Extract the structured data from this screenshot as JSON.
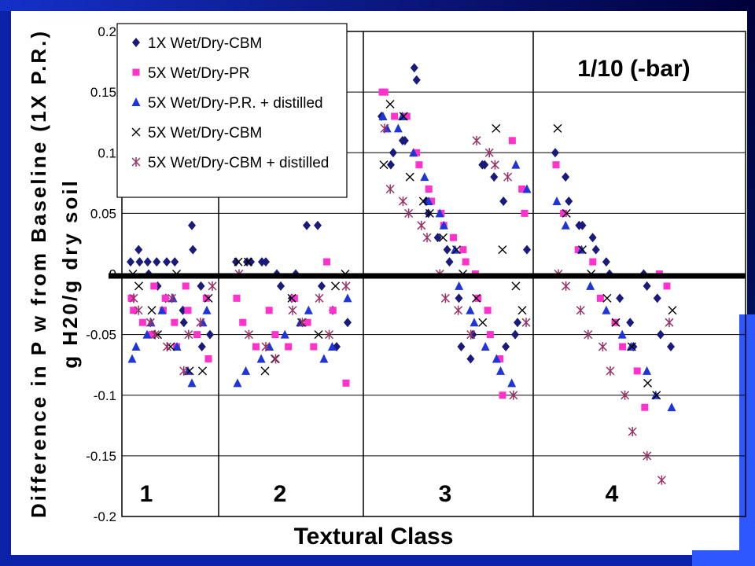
{
  "chart_data": {
    "type": "scatter",
    "title": "",
    "annotation": "1/10 (-bar)",
    "xlabel": "Textural Class",
    "ylabel_line1": "Difference in P w from Baseline (1X P.R.)",
    "ylabel_line2": "g H20/g dry soil",
    "ylim": [
      -0.2,
      0.2
    ],
    "yticks": [
      "0.2",
      "0.15",
      "0.1",
      "0.05",
      "0",
      "-0.05",
      "-0.1",
      "-0.15",
      "-0.2"
    ],
    "grid": true,
    "legend_position": "top-left",
    "classes": [
      "1",
      "2",
      "3",
      "4"
    ],
    "series": [
      {
        "name": "1X Wet/Dry-CBM",
        "marker": "diamond",
        "color": "#1a1a7a",
        "points": [
          [
            1,
            0.01
          ],
          [
            1,
            0.02
          ],
          [
            1,
            0.01
          ],
          [
            1,
            0.01
          ],
          [
            1,
            0.0
          ],
          [
            1,
            0.01
          ],
          [
            1,
            -0.01
          ],
          [
            1,
            -0.02
          ],
          [
            1,
            0.01
          ],
          [
            1,
            0.01
          ],
          [
            1,
            -0.03
          ],
          [
            1,
            -0.04
          ],
          [
            1,
            0.04
          ],
          [
            1,
            0.02
          ],
          [
            1,
            -0.01
          ],
          [
            1,
            -0.06
          ],
          [
            1,
            -0.05
          ],
          [
            2,
            0.01
          ],
          [
            2,
            0.01
          ],
          [
            2,
            0.01
          ],
          [
            2,
            0.01
          ],
          [
            2,
            0.01
          ],
          [
            2,
            0.0
          ],
          [
            2,
            -0.01
          ],
          [
            2,
            -0.02
          ],
          [
            2,
            0.0
          ],
          [
            2,
            0.04
          ],
          [
            2,
            0.04
          ],
          [
            2,
            -0.01
          ],
          [
            2,
            -0.03
          ],
          [
            2,
            -0.06
          ],
          [
            2,
            -0.04
          ],
          [
            3,
            0.13
          ],
          [
            3,
            0.09
          ],
          [
            3,
            0.1
          ],
          [
            3,
            0.11
          ],
          [
            3,
            0.11
          ],
          [
            3,
            0.17
          ],
          [
            3,
            0.16
          ],
          [
            3,
            0.06
          ],
          [
            3,
            0.05
          ],
          [
            3,
            0.03
          ],
          [
            3,
            0.02
          ],
          [
            3,
            0.01
          ],
          [
            3,
            -0.02
          ],
          [
            3,
            -0.06
          ],
          [
            3,
            -0.07
          ],
          [
            3,
            -0.05
          ],
          [
            3,
            0.09
          ],
          [
            3,
            0.09
          ],
          [
            3,
            0.08
          ],
          [
            3,
            0.06
          ],
          [
            3,
            -0.06
          ],
          [
            3,
            -0.05
          ],
          [
            3,
            -0.04
          ],
          [
            3,
            0.02
          ],
          [
            4,
            0.1
          ],
          [
            4,
            0.08
          ],
          [
            4,
            0.06
          ],
          [
            4,
            0.04
          ],
          [
            4,
            0.04
          ],
          [
            4,
            0.03
          ],
          [
            4,
            0.02
          ],
          [
            4,
            0.01
          ],
          [
            4,
            0.0
          ],
          [
            4,
            -0.02
          ],
          [
            4,
            -0.04
          ],
          [
            4,
            -0.06
          ],
          [
            4,
            0.0
          ],
          [
            4,
            -0.01
          ],
          [
            4,
            -0.02
          ],
          [
            4,
            -0.05
          ],
          [
            4,
            -0.06
          ]
        ]
      },
      {
        "name": "5X Wet/Dry-PR",
        "marker": "square",
        "color": "#ff33cc",
        "points": [
          [
            1,
            -0.02
          ],
          [
            1,
            -0.03
          ],
          [
            1,
            -0.04
          ],
          [
            1,
            -0.05
          ],
          [
            1,
            -0.01
          ],
          [
            1,
            -0.03
          ],
          [
            1,
            -0.02
          ],
          [
            1,
            -0.04
          ],
          [
            1,
            -0.06
          ],
          [
            1,
            -0.01
          ],
          [
            1,
            -0.03
          ],
          [
            1,
            -0.05
          ],
          [
            1,
            -0.02
          ],
          [
            1,
            -0.07
          ],
          [
            2,
            -0.02
          ],
          [
            2,
            -0.04
          ],
          [
            2,
            -0.06
          ],
          [
            2,
            -0.03
          ],
          [
            2,
            -0.05
          ],
          [
            2,
            -0.06
          ],
          [
            2,
            -0.02
          ],
          [
            2,
            -0.04
          ],
          [
            2,
            -0.06
          ],
          [
            2,
            0.01
          ],
          [
            2,
            -0.03
          ],
          [
            2,
            -0.09
          ],
          [
            3,
            0.15
          ],
          [
            3,
            0.15
          ],
          [
            3,
            0.13
          ],
          [
            3,
            0.13
          ],
          [
            3,
            0.13
          ],
          [
            3,
            0.1
          ],
          [
            3,
            0.09
          ],
          [
            3,
            0.07
          ],
          [
            3,
            0.06
          ],
          [
            3,
            0.05
          ],
          [
            3,
            0.04
          ],
          [
            3,
            0.03
          ],
          [
            3,
            0.02
          ],
          [
            3,
            0.01
          ],
          [
            3,
            0.0
          ],
          [
            3,
            -0.02
          ],
          [
            3,
            -0.03
          ],
          [
            3,
            -0.05
          ],
          [
            3,
            -0.07
          ],
          [
            3,
            -0.1
          ],
          [
            3,
            0.11
          ],
          [
            3,
            0.07
          ],
          [
            3,
            0.05
          ],
          [
            4,
            0.09
          ],
          [
            4,
            0.05
          ],
          [
            4,
            0.02
          ],
          [
            4,
            0.01
          ],
          [
            4,
            -0.02
          ],
          [
            4,
            -0.04
          ],
          [
            4,
            -0.06
          ],
          [
            4,
            -0.08
          ],
          [
            4,
            -0.11
          ],
          [
            4,
            0.0
          ],
          [
            4,
            -0.01
          ]
        ]
      },
      {
        "name": "5X Wet/Dry-P.R. + distilled",
        "marker": "triangle",
        "color": "#1f35d6",
        "points": [
          [
            1,
            -0.07
          ],
          [
            1,
            -0.06
          ],
          [
            1,
            -0.05
          ],
          [
            1,
            -0.04
          ],
          [
            1,
            -0.03
          ],
          [
            1,
            -0.02
          ],
          [
            1,
            -0.06
          ],
          [
            1,
            -0.08
          ],
          [
            1,
            -0.09
          ],
          [
            1,
            -0.04
          ],
          [
            1,
            -0.03
          ],
          [
            2,
            -0.09
          ],
          [
            2,
            -0.08
          ],
          [
            2,
            -0.07
          ],
          [
            2,
            -0.06
          ],
          [
            2,
            -0.05
          ],
          [
            2,
            -0.04
          ],
          [
            2,
            -0.03
          ],
          [
            2,
            -0.07
          ],
          [
            2,
            -0.06
          ],
          [
            2,
            -0.02
          ],
          [
            3,
            0.13
          ],
          [
            3,
            0.12
          ],
          [
            3,
            0.12
          ],
          [
            3,
            0.13
          ],
          [
            3,
            0.1
          ],
          [
            3,
            0.08
          ],
          [
            3,
            0.06
          ],
          [
            3,
            0.05
          ],
          [
            3,
            0.04
          ],
          [
            3,
            0.02
          ],
          [
            3,
            -0.01
          ],
          [
            3,
            -0.03
          ],
          [
            3,
            -0.04
          ],
          [
            3,
            -0.06
          ],
          [
            3,
            -0.07
          ],
          [
            3,
            -0.08
          ],
          [
            3,
            -0.09
          ],
          [
            3,
            0.09
          ],
          [
            3,
            0.07
          ],
          [
            4,
            0.06
          ],
          [
            4,
            0.04
          ],
          [
            4,
            0.02
          ],
          [
            4,
            -0.01
          ],
          [
            4,
            -0.03
          ],
          [
            4,
            -0.05
          ],
          [
            4,
            -0.06
          ],
          [
            4,
            -0.08
          ],
          [
            4,
            -0.1
          ],
          [
            4,
            -0.11
          ]
        ]
      },
      {
        "name": "5X Wet/Dry-CBM",
        "marker": "x",
        "color": "#000000",
        "points": [
          [
            1,
            0.0
          ],
          [
            1,
            -0.01
          ],
          [
            1,
            -0.03
          ],
          [
            1,
            -0.05
          ],
          [
            1,
            -0.06
          ],
          [
            1,
            0.0
          ],
          [
            1,
            -0.08
          ],
          [
            1,
            -0.08
          ],
          [
            1,
            -0.02
          ],
          [
            2,
            0.01
          ],
          [
            2,
            0.01
          ],
          [
            2,
            -0.08
          ],
          [
            2,
            -0.07
          ],
          [
            2,
            -0.02
          ],
          [
            2,
            -0.04
          ],
          [
            2,
            -0.05
          ],
          [
            2,
            -0.01
          ],
          [
            2,
            0.0
          ],
          [
            3,
            0.09
          ],
          [
            3,
            0.14
          ],
          [
            3,
            0.13
          ],
          [
            3,
            0.08
          ],
          [
            3,
            0.06
          ],
          [
            3,
            0.05
          ],
          [
            3,
            0.03
          ],
          [
            3,
            0.02
          ],
          [
            3,
            0.0
          ],
          [
            3,
            -0.02
          ],
          [
            3,
            -0.04
          ],
          [
            3,
            0.12
          ],
          [
            3,
            0.02
          ],
          [
            3,
            -0.01
          ],
          [
            3,
            -0.03
          ],
          [
            4,
            0.12
          ],
          [
            4,
            0.05
          ],
          [
            4,
            0.02
          ],
          [
            4,
            0.0
          ],
          [
            4,
            -0.02
          ],
          [
            4,
            -0.04
          ],
          [
            4,
            -0.06
          ],
          [
            4,
            -0.09
          ],
          [
            4,
            -0.1
          ],
          [
            4,
            -0.03
          ]
        ]
      },
      {
        "name": "5X Wet/Dry-CBM + distilled",
        "marker": "asterisk",
        "color": "#993366",
        "points": [
          [
            1,
            -0.02
          ],
          [
            1,
            -0.03
          ],
          [
            1,
            -0.04
          ],
          [
            1,
            -0.05
          ],
          [
            1,
            -0.06
          ],
          [
            1,
            -0.02
          ],
          [
            1,
            -0.08
          ],
          [
            1,
            -0.05
          ],
          [
            1,
            -0.04
          ],
          [
            1,
            -0.01
          ],
          [
            2,
            0.0
          ],
          [
            2,
            -0.05
          ],
          [
            2,
            -0.06
          ],
          [
            2,
            -0.07
          ],
          [
            2,
            -0.03
          ],
          [
            2,
            -0.04
          ],
          [
            2,
            -0.02
          ],
          [
            2,
            -0.05
          ],
          [
            2,
            -0.01
          ],
          [
            3,
            0.12
          ],
          [
            3,
            0.07
          ],
          [
            3,
            0.06
          ],
          [
            3,
            0.05
          ],
          [
            3,
            0.04
          ],
          [
            3,
            0.03
          ],
          [
            3,
            0.0
          ],
          [
            3,
            -0.02
          ],
          [
            3,
            -0.03
          ],
          [
            3,
            -0.05
          ],
          [
            3,
            0.11
          ],
          [
            3,
            0.1
          ],
          [
            3,
            0.09
          ],
          [
            3,
            0.08
          ],
          [
            3,
            -0.1
          ],
          [
            3,
            -0.04
          ],
          [
            4,
            0.0
          ],
          [
            4,
            -0.01
          ],
          [
            4,
            -0.03
          ],
          [
            4,
            -0.05
          ],
          [
            4,
            -0.06
          ],
          [
            4,
            -0.08
          ],
          [
            4,
            -0.1
          ],
          [
            4,
            -0.13
          ],
          [
            4,
            -0.15
          ],
          [
            4,
            -0.17
          ],
          [
            4,
            -0.04
          ]
        ]
      }
    ]
  },
  "colors": {
    "slide_blue": "#0b22a8",
    "slide_blue_dark": "#000c6b",
    "baseline": "#000000"
  }
}
